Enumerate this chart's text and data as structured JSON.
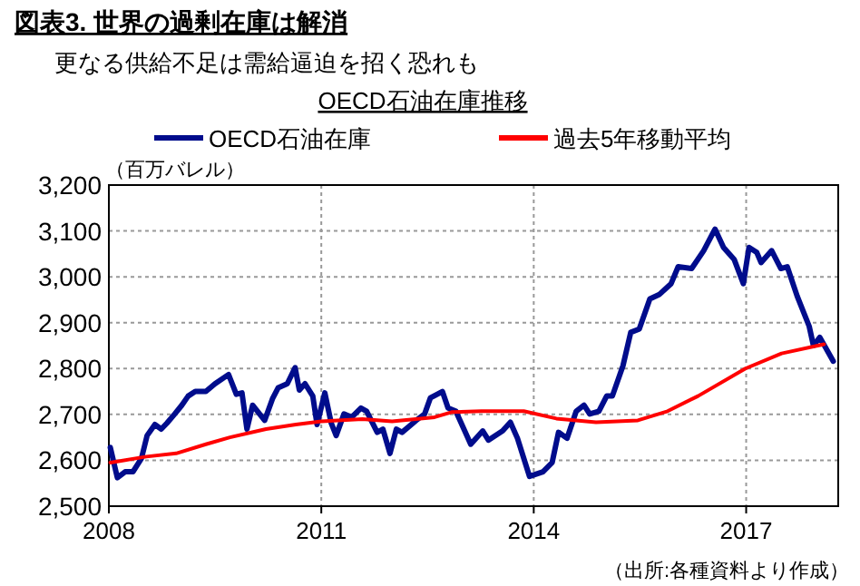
{
  "chart_data": {
    "type": "line",
    "title": "図表3. 世界の過剰在庫は解消",
    "subtitle": "更なる供給不足は需給逼迫を招く恐れも",
    "ylabel": "（百万バレル）",
    "annotations": [
      "OECD石油在庫推移",
      "（出所:各種資料より作成）"
    ],
    "series": [
      {
        "name": "OECD石油在庫",
        "color": "#000c8c",
        "x": [
          2008.02,
          2008.12,
          2008.23,
          2008.34,
          2008.46,
          2008.54,
          2008.65,
          2008.74,
          2008.82,
          2008.93,
          2009.03,
          2009.12,
          2009.22,
          2009.37,
          2009.5,
          2009.69,
          2009.8,
          2009.88,
          2009.95,
          2010.03,
          2010.2,
          2010.31,
          2010.39,
          2010.52,
          2010.63,
          2010.69,
          2010.77,
          2010.88,
          2010.94,
          2011.05,
          2011.14,
          2011.21,
          2011.32,
          2011.43,
          2011.56,
          2011.64,
          2011.79,
          2011.87,
          2011.97,
          2012.06,
          2012.14,
          2012.34,
          2012.46,
          2012.54,
          2012.71,
          2012.79,
          2012.9,
          2013.11,
          2013.28,
          2013.36,
          2013.56,
          2013.67,
          2013.77,
          2013.94,
          2014.13,
          2014.26,
          2014.35,
          2014.47,
          2014.6,
          2014.71,
          2014.79,
          2014.92,
          2015.03,
          2015.11,
          2015.26,
          2015.37,
          2015.49,
          2015.64,
          2015.77,
          2015.94,
          2016.04,
          2016.23,
          2016.4,
          2016.56,
          2016.68,
          2016.83,
          2016.96,
          2017.04,
          2017.15,
          2017.21,
          2017.36,
          2017.49,
          2017.58,
          2017.72,
          2017.89,
          2017.95,
          2018.04,
          2018.23
        ],
        "values": [
          2628,
          2562,
          2575,
          2575,
          2604,
          2654,
          2678,
          2668,
          2681,
          2701,
          2720,
          2740,
          2750,
          2750,
          2767,
          2787,
          2744,
          2747,
          2668,
          2720,
          2687,
          2734,
          2758,
          2767,
          2802,
          2753,
          2767,
          2740,
          2678,
          2747,
          2681,
          2654,
          2701,
          2694,
          2714,
          2707,
          2661,
          2668,
          2615,
          2668,
          2661,
          2687,
          2701,
          2736,
          2750,
          2714,
          2707,
          2635,
          2664,
          2644,
          2664,
          2683,
          2648,
          2565,
          2575,
          2595,
          2661,
          2648,
          2707,
          2720,
          2701,
          2707,
          2740,
          2740,
          2806,
          2879,
          2886,
          2952,
          2961,
          2985,
          3022,
          3018,
          3057,
          3104,
          3064,
          3038,
          2985,
          3064,
          3053,
          3031,
          3057,
          3018,
          3022,
          2958,
          2892,
          2850,
          2868,
          2816
        ]
      },
      {
        "name": "過去5年移動平均",
        "color": "#ff0000",
        "x": [
          2008.02,
          2008.53,
          2008.95,
          2009.37,
          2009.71,
          2010.22,
          2010.64,
          2011.0,
          2011.58,
          2012.0,
          2012.6,
          2012.84,
          2013.26,
          2013.86,
          2014.32,
          2014.88,
          2015.47,
          2015.89,
          2016.32,
          2016.99,
          2017.5,
          2018.1
        ],
        "values": [
          2595,
          2608,
          2615,
          2635,
          2650,
          2668,
          2678,
          2685,
          2690,
          2685,
          2694,
          2705,
          2707,
          2707,
          2691,
          2683,
          2687,
          2707,
          2740,
          2800,
          2833,
          2853
        ]
      }
    ],
    "xlim": [
      2008,
      2018.3
    ],
    "xticks": [
      2008,
      2011,
      2014,
      2017
    ],
    "ylim": [
      2500,
      3200
    ],
    "yticks": [
      {
        "value": 2500,
        "label": "2,500"
      },
      {
        "value": 2600,
        "label": "2,600"
      },
      {
        "value": 2700,
        "label": "2,700"
      },
      {
        "value": 2800,
        "label": "2,800"
      },
      {
        "value": 2900,
        "label": "2,900"
      },
      {
        "value": 3000,
        "label": "3,000"
      },
      {
        "value": 3100,
        "label": "3,100"
      },
      {
        "value": 3200,
        "label": "3,200"
      }
    ],
    "grid": true,
    "legend": "top",
    "line_style": "solid"
  }
}
